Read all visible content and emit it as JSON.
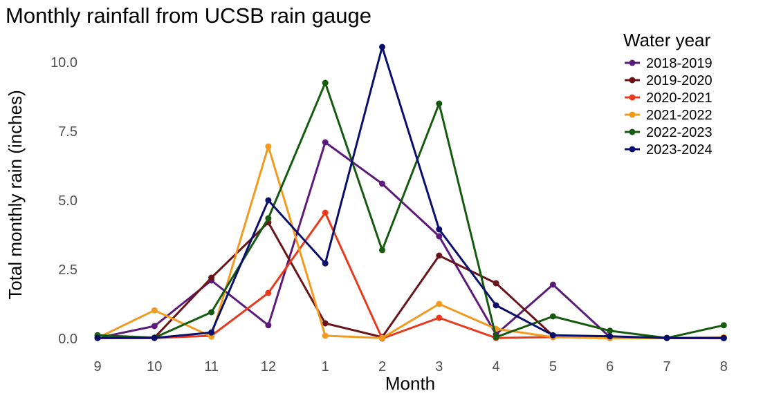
{
  "chart_data": {
    "type": "line",
    "title": "Monthly rainfall from UCSB rain gauge",
    "xlabel": "Month",
    "ylabel": "Total monthly rain (inches)",
    "categories": [
      "9",
      "10",
      "11",
      "12",
      "1",
      "2",
      "3",
      "4",
      "5",
      "6",
      "7",
      "8"
    ],
    "ylim": [
      0,
      10.5
    ],
    "yticks": [
      "0.0",
      "2.5",
      "5.0",
      "7.5",
      "10.0"
    ],
    "ytick_values": [
      0,
      2.5,
      5,
      7.5,
      10
    ],
    "grid": false,
    "legend": {
      "title": "Water year",
      "position": "top-right"
    },
    "series": [
      {
        "name": "2018-2019",
        "color": "#5c1a7a",
        "values": [
          0.02,
          0.45,
          2.1,
          0.48,
          7.1,
          5.6,
          3.7,
          0.15,
          1.95,
          0.05,
          0.02,
          0.01
        ]
      },
      {
        "name": "2019-2020",
        "color": "#6b1418",
        "values": [
          0.02,
          0.03,
          2.2,
          4.2,
          0.55,
          0.05,
          3.0,
          2.0,
          0.1,
          0.05,
          0.02,
          0.02
        ]
      },
      {
        "name": "2020-2021",
        "color": "#e8391c",
        "values": [
          0.02,
          0.02,
          0.1,
          1.65,
          4.55,
          0.0,
          0.75,
          0.02,
          0.05,
          0.03,
          0.02,
          0.02
        ]
      },
      {
        "name": "2021-2022",
        "color": "#f29a1f",
        "values": [
          0.02,
          1.02,
          0.07,
          6.95,
          0.1,
          0.02,
          1.25,
          0.35,
          0.05,
          0.01,
          0.02,
          0.05
        ]
      },
      {
        "name": "2022-2023",
        "color": "#145a0f",
        "values": [
          0.12,
          0.03,
          0.95,
          4.35,
          9.25,
          3.2,
          8.5,
          0.05,
          0.8,
          0.28,
          0.02,
          0.48
        ]
      },
      {
        "name": "2023-2024",
        "color": "#0a0f6b",
        "values": [
          0.02,
          0.02,
          0.22,
          5.0,
          2.72,
          10.55,
          3.95,
          1.2,
          0.12,
          0.08,
          0.02,
          0.02
        ]
      }
    ]
  }
}
